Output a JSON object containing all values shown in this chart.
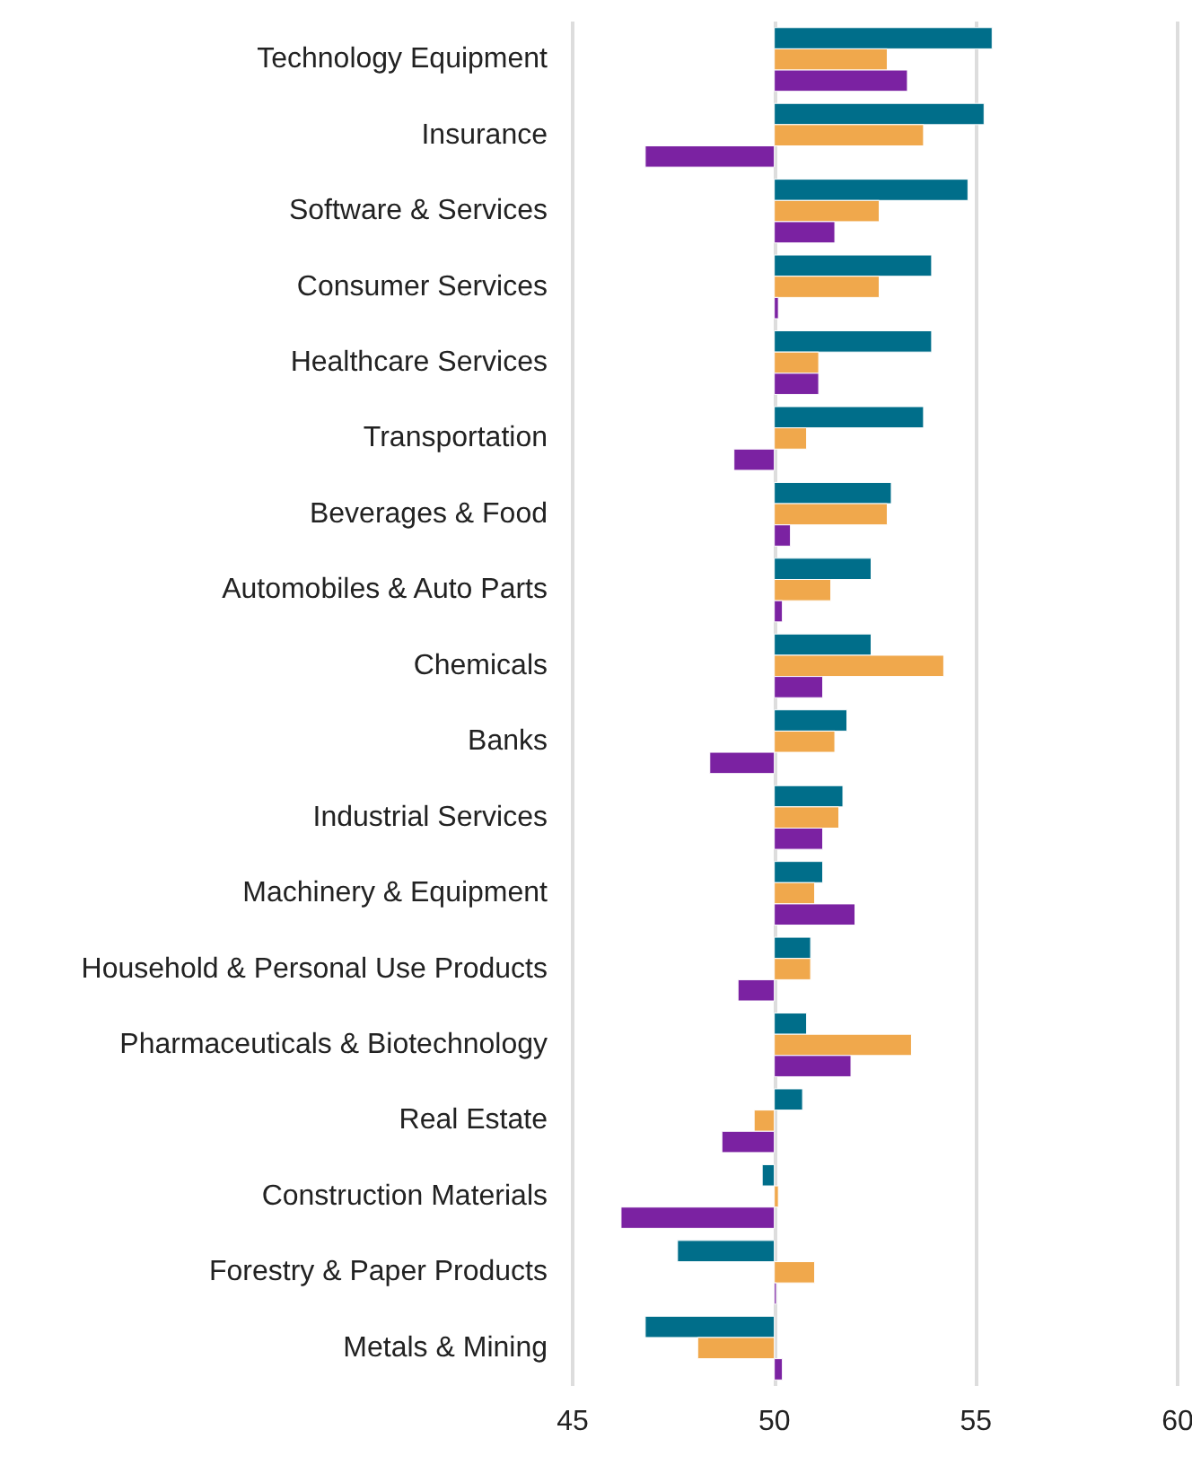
{
  "chart_data": {
    "type": "bar",
    "orientation": "horizontal",
    "categories": [
      "Technology Equipment",
      "Insurance",
      "Software & Services",
      "Consumer Services",
      "Healthcare Services",
      "Transportation",
      "Beverages & Food",
      "Automobiles & Auto Parts",
      "Chemicals",
      "Banks",
      "Industrial Services",
      "Machinery & Equipment",
      "Household & Personal Use Products",
      "Pharmaceuticals & Biotechnology",
      "Real Estate",
      "Construction Materials",
      "Forestry & Paper Products",
      "Metals & Mining"
    ],
    "series": [
      {
        "color": "#006e8a",
        "base": [
          50,
          50,
          50,
          50,
          50,
          50,
          50,
          50,
          50,
          50,
          50,
          50,
          50,
          50,
          50,
          50,
          50,
          50
        ],
        "values": [
          5.4,
          5.2,
          4.8,
          3.9,
          3.9,
          3.7,
          2.9,
          2.4,
          2.4,
          1.8,
          1.7,
          1.2,
          0.9,
          0.8,
          0.7,
          -0.3,
          -2.4,
          -3.2
        ]
      },
      {
        "color": "#f0a84c",
        "base": [
          50,
          50,
          50,
          50,
          50,
          50,
          50,
          50,
          50,
          50,
          50,
          50,
          50,
          50,
          50,
          50,
          50,
          50
        ],
        "values": [
          2.8,
          3.7,
          2.6,
          2.6,
          1.1,
          0.8,
          2.8,
          1.4,
          4.2,
          1.5,
          1.6,
          1.0,
          0.9,
          3.4,
          -0.5,
          0.1,
          1.0,
          -1.9
        ]
      },
      {
        "color": "#7b22a2",
        "base": [
          50,
          50,
          50,
          50,
          50,
          50,
          50,
          50,
          50,
          50,
          50,
          50,
          50,
          50,
          50,
          50,
          50,
          50
        ],
        "values": [
          3.3,
          -3.2,
          1.5,
          0.1,
          1.1,
          -1.0,
          0.4,
          0.2,
          1.2,
          -1.6,
          1.2,
          2.0,
          -0.9,
          1.9,
          -1.3,
          -3.8,
          0.05,
          0.2
        ]
      }
    ],
    "xlim": [
      45,
      60
    ],
    "xticks": [
      45,
      50,
      55,
      60
    ],
    "grid": "x"
  }
}
